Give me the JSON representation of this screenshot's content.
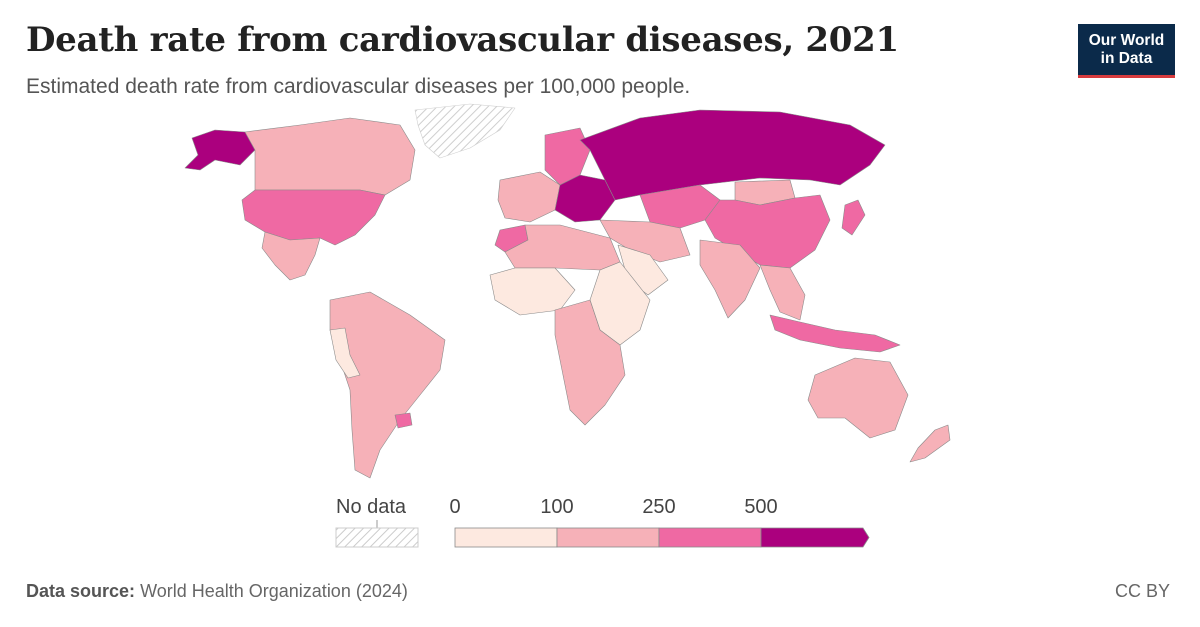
{
  "header": {
    "title": "Death rate from cardiovascular diseases, 2021",
    "subtitle": "Estimated death rate from cardiovascular diseases per 100,000 people."
  },
  "logo": {
    "line1": "Our World",
    "line2": "in Data"
  },
  "legend": {
    "no_data_label": "No data",
    "ticks": [
      "0",
      "100",
      "250",
      "500"
    ],
    "bins": [
      {
        "from": 0,
        "to": 100,
        "color": "#fde9e0"
      },
      {
        "from": 100,
        "to": 250,
        "color": "#f6b1b8"
      },
      {
        "from": 250,
        "to": 500,
        "color": "#ef69a3"
      },
      {
        "from": 500,
        "to": null,
        "color": "#ab007e"
      }
    ],
    "no_data_color": "#e0e0e0"
  },
  "footer": {
    "source_label": "Data source:",
    "source_value": "World Health Organization (2024)",
    "license": "CC BY"
  },
  "map_regions": [
    {
      "name": "Russia",
      "bin": 3
    },
    {
      "name": "Eastern Europe",
      "bin": 3
    },
    {
      "name": "Alaska",
      "bin": 3
    },
    {
      "name": "United States",
      "bin": 2
    },
    {
      "name": "China",
      "bin": 2
    },
    {
      "name": "Central Asia",
      "bin": 2
    },
    {
      "name": "Indonesia",
      "bin": 2
    },
    {
      "name": "Morocco",
      "bin": 2
    },
    {
      "name": "Uruguay",
      "bin": 2
    },
    {
      "name": "Northern Europe",
      "bin": 2
    },
    {
      "name": "Canada",
      "bin": 1
    },
    {
      "name": "Mexico",
      "bin": 1
    },
    {
      "name": "South America",
      "bin": 1
    },
    {
      "name": "North Africa",
      "bin": 1
    },
    {
      "name": "Southern Africa",
      "bin": 1
    },
    {
      "name": "Middle East",
      "bin": 1
    },
    {
      "name": "India",
      "bin": 1
    },
    {
      "name": "Southeast Asia",
      "bin": 1
    },
    {
      "name": "Australia",
      "bin": 1
    },
    {
      "name": "Mongolia",
      "bin": 1
    },
    {
      "name": "Western Europe",
      "bin": 1
    },
    {
      "name": "New Zealand",
      "bin": 1
    },
    {
      "name": "Japan",
      "bin": 2
    },
    {
      "name": "West Africa",
      "bin": 0
    },
    {
      "name": "East Africa",
      "bin": 0
    },
    {
      "name": "Arabian Peninsula",
      "bin": 0
    },
    {
      "name": "Peru",
      "bin": 0
    },
    {
      "name": "Greenland",
      "bin": -1
    }
  ]
}
